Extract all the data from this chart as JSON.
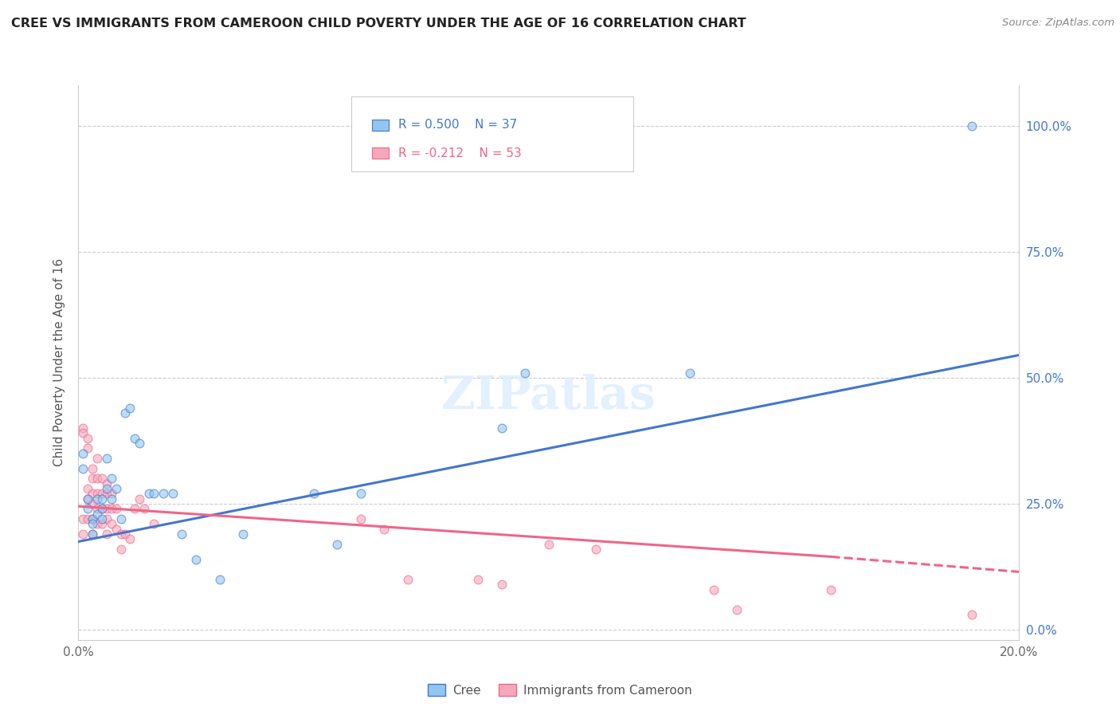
{
  "title": "CREE VS IMMIGRANTS FROM CAMEROON CHILD POVERTY UNDER THE AGE OF 16 CORRELATION CHART",
  "source": "Source: ZipAtlas.com",
  "ylabel": "Child Poverty Under the Age of 16",
  "xlim": [
    0.0,
    0.2
  ],
  "ylim": [
    -0.02,
    1.08
  ],
  "yticks": [
    0.0,
    0.25,
    0.5,
    0.75,
    1.0
  ],
  "ytick_labels": [
    "0.0%",
    "25.0%",
    "50.0%",
    "75.0%",
    "100.0%"
  ],
  "xticks": [
    0.0,
    0.05,
    0.1,
    0.15,
    0.2
  ],
  "xtick_labels": [
    "0.0%",
    "",
    "",
    "",
    "20.0%"
  ],
  "cree_color": "#92C5F0",
  "cameroon_color": "#F5A8BC",
  "cree_line_color": "#4477CC",
  "cameroon_line_color": "#EE6688",
  "cree_R": 0.5,
  "cree_N": 37,
  "cameroon_R": -0.212,
  "cameroon_N": 53,
  "background_color": "#ffffff",
  "grid_color": "#cccccc",
  "cree_x": [
    0.001,
    0.001,
    0.002,
    0.002,
    0.003,
    0.003,
    0.003,
    0.004,
    0.004,
    0.005,
    0.005,
    0.005,
    0.006,
    0.006,
    0.007,
    0.007,
    0.008,
    0.009,
    0.01,
    0.011,
    0.012,
    0.013,
    0.015,
    0.016,
    0.018,
    0.02,
    0.022,
    0.025,
    0.03,
    0.035,
    0.05,
    0.055,
    0.06,
    0.09,
    0.095,
    0.13,
    0.19
  ],
  "cree_y": [
    0.35,
    0.32,
    0.26,
    0.24,
    0.22,
    0.21,
    0.19,
    0.26,
    0.23,
    0.26,
    0.24,
    0.22,
    0.34,
    0.28,
    0.3,
    0.26,
    0.28,
    0.22,
    0.43,
    0.44,
    0.38,
    0.37,
    0.27,
    0.27,
    0.27,
    0.27,
    0.19,
    0.14,
    0.1,
    0.19,
    0.27,
    0.17,
    0.27,
    0.4,
    0.51,
    0.51,
    1.0
  ],
  "cameroon_x": [
    0.001,
    0.001,
    0.001,
    0.001,
    0.002,
    0.002,
    0.002,
    0.002,
    0.002,
    0.003,
    0.003,
    0.003,
    0.003,
    0.003,
    0.003,
    0.004,
    0.004,
    0.004,
    0.004,
    0.004,
    0.005,
    0.005,
    0.005,
    0.005,
    0.006,
    0.006,
    0.006,
    0.006,
    0.006,
    0.007,
    0.007,
    0.007,
    0.008,
    0.008,
    0.009,
    0.009,
    0.01,
    0.011,
    0.012,
    0.013,
    0.014,
    0.016,
    0.06,
    0.065,
    0.07,
    0.085,
    0.09,
    0.1,
    0.11,
    0.135,
    0.14,
    0.16,
    0.19
  ],
  "cameroon_y": [
    0.4,
    0.39,
    0.22,
    0.19,
    0.38,
    0.36,
    0.28,
    0.26,
    0.22,
    0.32,
    0.3,
    0.27,
    0.25,
    0.22,
    0.19,
    0.34,
    0.3,
    0.27,
    0.24,
    0.21,
    0.3,
    0.27,
    0.24,
    0.21,
    0.29,
    0.27,
    0.24,
    0.22,
    0.19,
    0.27,
    0.24,
    0.21,
    0.24,
    0.2,
    0.19,
    0.16,
    0.19,
    0.18,
    0.24,
    0.26,
    0.24,
    0.21,
    0.22,
    0.2,
    0.1,
    0.1,
    0.09,
    0.17,
    0.16,
    0.08,
    0.04,
    0.08,
    0.03
  ],
  "cree_line_x0": 0.0,
  "cree_line_x1": 0.2,
  "cree_line_y0": 0.175,
  "cree_line_y1": 0.545,
  "cam_line_x0": 0.0,
  "cam_line_x1": 0.16,
  "cam_line_x1_dash": 0.2,
  "cam_line_y0": 0.245,
  "cam_line_y1": 0.145,
  "cam_line_y1_dash": 0.115
}
